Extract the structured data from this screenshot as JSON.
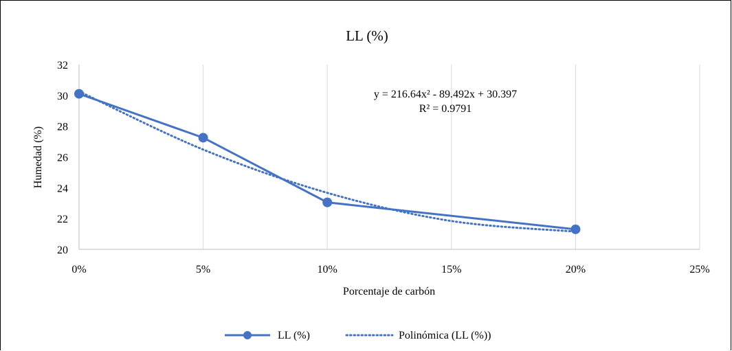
{
  "chart_data": {
    "type": "line",
    "title": "LL (%)",
    "xlabel": "Porcentaje de carbón",
    "ylabel": "Humedad (%)",
    "x_ticks": [
      "0%",
      "5%",
      "10%",
      "15%",
      "20%",
      "25%"
    ],
    "y_ticks": [
      "20",
      "22",
      "24",
      "26",
      "28",
      "30",
      "32"
    ],
    "ylim": [
      20,
      32
    ],
    "grid": "vertical",
    "legend_position": "bottom",
    "series": [
      {
        "name": "LL (%)",
        "style": "solid-with-markers",
        "color": "#4472C4",
        "points": [
          {
            "x_index": 0,
            "y": 30.1
          },
          {
            "x_index": 1,
            "y": 27.25
          },
          {
            "x_index": 2,
            "y": 23.05
          },
          {
            "x_index": 4,
            "y": 21.3
          }
        ]
      },
      {
        "name": "Polinómica (LL (%))",
        "style": "dotted",
        "color": "#4472C4",
        "trendline": "polynomial order 2 fitted against category index",
        "points": [
          {
            "x_index": 0,
            "y": 30.26
          },
          {
            "x_index": 1,
            "y": 26.48
          },
          {
            "x_index": 2,
            "y": 23.67
          },
          {
            "x_index": 3,
            "y": 21.84
          },
          {
            "x_index": 4,
            "y": 21.15
          }
        ]
      }
    ],
    "annotation": {
      "equation": "y = 216.64x² - 89.492x + 30.397",
      "r_squared": "R² = 0.9791"
    }
  }
}
